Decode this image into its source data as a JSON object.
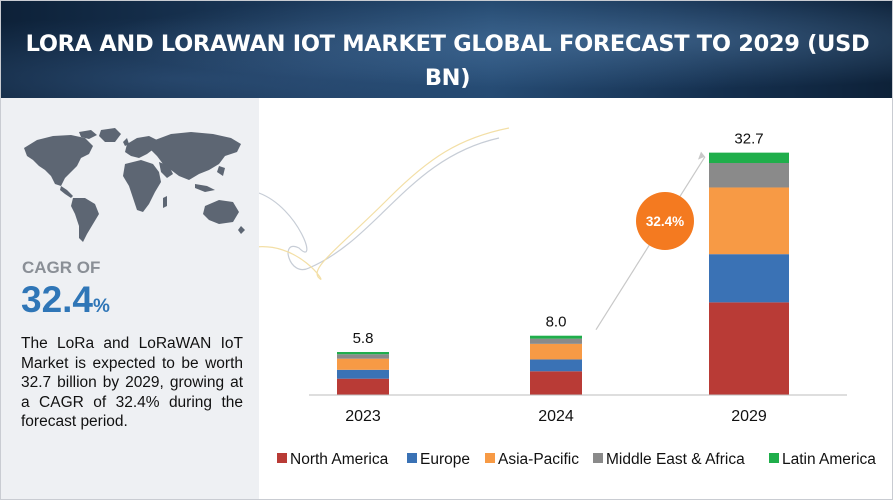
{
  "header": {
    "title": "LORA AND LORAWAN IOT MARKET GLOBAL FORECAST TO 2029 (USD BN)"
  },
  "sidebar": {
    "cagr_label": "CAGR OF",
    "cagr_number": "32.4",
    "cagr_unit": "%",
    "description": "The LoRa and LoRaWAN IoT Market is expected to be worth 32.7 billion by 2029, growing at a CAGR of 32.4% during the forecast period.",
    "map_icon": "world-map-icon"
  },
  "chart_data": {
    "type": "bar",
    "stacked": true,
    "title": "LORA AND LORAWAN IOT MARKET GLOBAL FORECAST TO 2029 (USD BN)",
    "xlabel": "",
    "ylabel": "",
    "categories": [
      "2023",
      "2024",
      "2029"
    ],
    "totals": [
      5.8,
      8.0,
      32.7
    ],
    "total_labels": [
      "5.8",
      "8.0",
      "32.7"
    ],
    "series": [
      {
        "name": "North America",
        "color": "#b93b36",
        "values": [
          2.2,
          3.2,
          12.5
        ]
      },
      {
        "name": "Europe",
        "color": "#3a72b5",
        "values": [
          1.2,
          1.6,
          6.5
        ]
      },
      {
        "name": "Asia-Pacific",
        "color": "#f79a45",
        "values": [
          1.5,
          2.1,
          9.0
        ]
      },
      {
        "name": "Middle East & Africa",
        "color": "#8a8a8a",
        "values": [
          0.6,
          0.7,
          3.3
        ]
      },
      {
        "name": "Latin America",
        "color": "#1fae4b",
        "values": [
          0.3,
          0.4,
          1.4
        ]
      }
    ],
    "ylim": [
      0,
      34
    ],
    "grid": false,
    "legend_position": "bottom",
    "cagr_annotation": "32.4%",
    "cagr_color": "#f47a20"
  }
}
